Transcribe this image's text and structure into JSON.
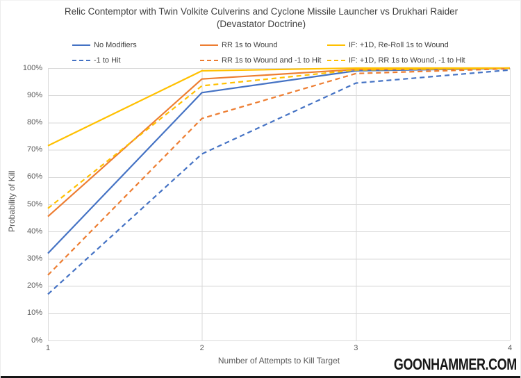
{
  "header": {
    "title_line1": "Relic Contemptor with Twin Volkite Culverins and Cyclone Missile Launcher vs Drukhari Raider",
    "title_line2": "(Devastator Doctrine)"
  },
  "watermark": "GOONHAMMER.COM",
  "colors": {
    "blue": "#4472C4",
    "orange": "#ED7D31",
    "yellow": "#FFC000",
    "gridline": "#D9D9D9",
    "axis_text": "#595959",
    "title_text": "#404040",
    "footer_bar": "#161616"
  },
  "chart_data": {
    "type": "line",
    "title": "Relic Contemptor with Twin Volkite Culverins and Cyclone Missile Launcher vs Drukhari Raider",
    "subtitle": "(Devastator Doctrine)",
    "xlabel": "Number of Attempts to Kill Target",
    "ylabel": "Probability of Kill",
    "x": [
      1,
      2,
      3,
      4
    ],
    "x_tick_labels": [
      "1",
      "2",
      "3",
      "4"
    ],
    "xlim": [
      1,
      4
    ],
    "ylim": [
      0,
      100
    ],
    "y_tick_step": 10,
    "y_tick_labels": [
      "0%",
      "10%",
      "20%",
      "30%",
      "40%",
      "50%",
      "60%",
      "70%",
      "80%",
      "90%",
      "100%"
    ],
    "grid": true,
    "legend_position": "top",
    "series": [
      {
        "name": "No Modifiers",
        "color": "#4472C4",
        "dash": "solid",
        "values": [
          32,
          91,
          99,
          99.9
        ]
      },
      {
        "name": "RR 1s to Wound",
        "color": "#ED7D31",
        "dash": "solid",
        "values": [
          45.5,
          96,
          99.5,
          100
        ]
      },
      {
        "name": "IF: +1D, Re-Roll 1s to Wound",
        "color": "#FFC000",
        "dash": "solid",
        "values": [
          71.5,
          99,
          100,
          100
        ]
      },
      {
        "name": "-1 to Hit",
        "color": "#4472C4",
        "dash": "dashed",
        "values": [
          17,
          68.5,
          94.5,
          99.3
        ]
      },
      {
        "name": "RR 1s to Wound and -1 to Hit",
        "color": "#ED7D31",
        "dash": "dashed",
        "values": [
          24,
          81.5,
          98,
          99.8
        ]
      },
      {
        "name": "IF: +1D, RR 1s to Wound, -1 to Hit",
        "color": "#FFC000",
        "dash": "dashed",
        "values": [
          48.5,
          93.5,
          99.3,
          100
        ]
      }
    ]
  }
}
